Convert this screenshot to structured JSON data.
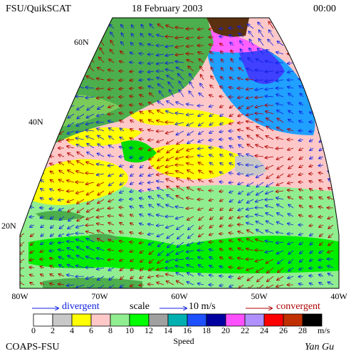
{
  "header": {
    "left": "FSU/QuikSCAT",
    "date": "18 February 2003",
    "time": "00:00"
  },
  "lat_labels": [
    "60N",
    "40N",
    "20N"
  ],
  "lon_labels": [
    "80W",
    "70W",
    "60W",
    "50W",
    "40W"
  ],
  "legend": {
    "divergent": "divergent",
    "scale": "scale",
    "scale_value": "10 m/s",
    "convergent": "convergent"
  },
  "colorbar": {
    "labels": [
      0,
      2,
      4,
      6,
      8,
      10,
      12,
      14,
      16,
      18,
      20,
      22,
      24,
      26,
      28
    ],
    "unit": "m/s",
    "title": "Speed"
  },
  "footer": {
    "left": "COAPS-FSU",
    "right": "Yan Gu"
  }
}
